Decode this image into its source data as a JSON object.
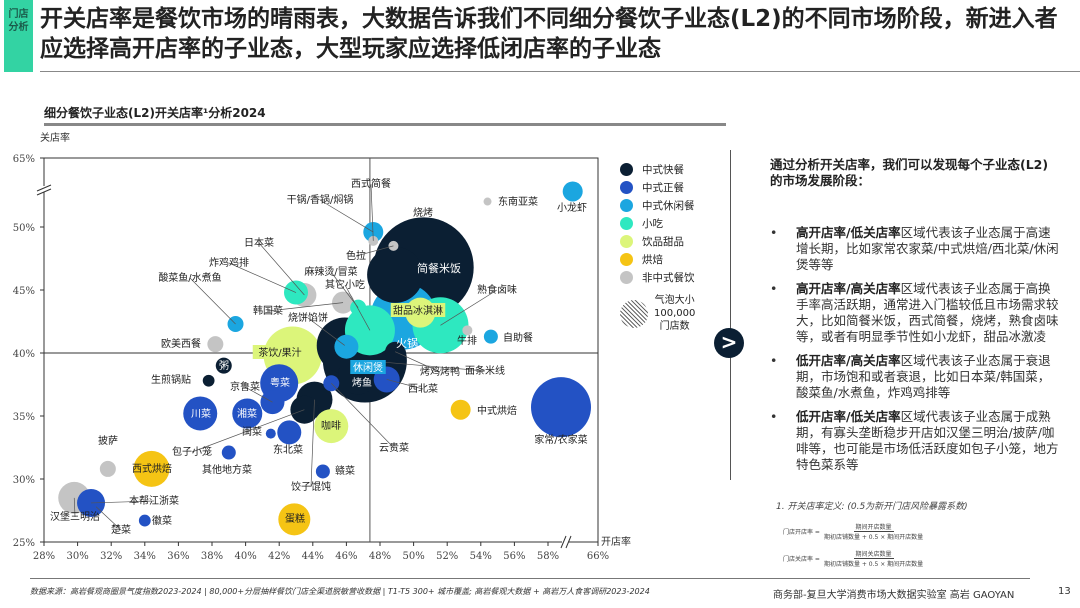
{
  "header": {
    "tag": "门店分析",
    "title": "开关店率是餐饮市场的晴雨表，大数据告诉我们不同细分餐饮子业态(L2)的不同市场阶段，新进入者应选择高开店率的子业态，大型玩家应选择低闭店率的子业态",
    "subtitle": "细分餐饮子业态(L2)开关店率¹分析2024"
  },
  "legend": {
    "items": [
      {
        "label": "中式快餐",
        "color": "#0b1f33"
      },
      {
        "label": "中式正餐",
        "color": "#2352c4"
      },
      {
        "label": "中式休闲餐",
        "color": "#1ba6e0"
      },
      {
        "label": "小吃",
        "color": "#2ee8c0"
      },
      {
        "label": "饮品甜品",
        "color": "#dcf57a"
      },
      {
        "label": "烘焙",
        "color": "#f5c414"
      },
      {
        "label": "非中式餐饮",
        "color": "#c4c4c4"
      }
    ],
    "size_title": "气泡大小",
    "size_value": "100,000",
    "size_unit": "门店数"
  },
  "chart_data": {
    "type": "scatter",
    "subtype": "bubble",
    "xlabel": "开店率",
    "ylabel": "关店率",
    "x_ticks": [
      "28%",
      "30%",
      "32%",
      "34%",
      "36%",
      "38%",
      "40%",
      "42%",
      "44%",
      "46%",
      "48%",
      "50%",
      "52%",
      "54%",
      "56%",
      "58%",
      "66%"
    ],
    "y_ticks": [
      "25%",
      "30%",
      "35%",
      "40%",
      "45%",
      "50%",
      "65%"
    ],
    "xlim": [
      28,
      66
    ],
    "ylim": [
      25,
      65
    ],
    "axis_breaks": {
      "x": [
        58,
        66
      ],
      "y": [
        50,
        65
      ]
    },
    "reference_lines": {
      "x": 47.4,
      "y": 40
    },
    "size_unit": "门店数",
    "points": [
      {
        "name": "小龙虾",
        "category": "中式休闲餐",
        "x": 61.8,
        "y": 52.9,
        "stores": 51000
      },
      {
        "name": "东南亚菜",
        "category": "非中式餐饮",
        "x": 54.4,
        "y": 52.1,
        "stores": 8000
      },
      {
        "name": "干锅/香锅/焖锅",
        "category": "中式休闲餐",
        "x": 47.6,
        "y": 49.6,
        "stores": 51000
      },
      {
        "name": "西式简餐",
        "category": "非中式餐饮",
        "x": 47.6,
        "y": 48.9,
        "stores": 13000
      },
      {
        "name": "色拉",
        "category": "非中式餐饮",
        "x": 48.8,
        "y": 48.5,
        "stores": 13000
      },
      {
        "name": "简餐米饭",
        "category": "中式快餐",
        "x": 50.6,
        "y": 46.8,
        "stores": 1276000
      },
      {
        "name": "烧烤",
        "category": "中式快餐",
        "x": 48.9,
        "y": 46.2,
        "stores": 400000
      },
      {
        "name": "熟食卤味",
        "category": "小吃",
        "x": 51.6,
        "y": 42.2,
        "stores": 400000
      },
      {
        "name": "火锅",
        "category": "中式休闲餐",
        "x": 49.4,
        "y": 42.9,
        "stores": 556000
      },
      {
        "name": "甜品冰淇淋",
        "category": "饮品甜品",
        "x": 50.4,
        "y": 43.2,
        "stores": 115000
      },
      {
        "name": "其它小吃",
        "category": "小吃",
        "x": 47.4,
        "y": 41.8,
        "stores": 319000
      },
      {
        "name": "麻辣烫/冒菜",
        "category": "小吃",
        "x": 46.7,
        "y": 43.6,
        "stores": 33000
      },
      {
        "name": "韩国菜",
        "category": "非中式餐饮",
        "x": 45.8,
        "y": 44.0,
        "stores": 62000
      },
      {
        "name": "日本菜",
        "category": "非中式餐饮",
        "x": 43.5,
        "y": 44.6,
        "stores": 73000
      },
      {
        "name": "炸鸡鸡排",
        "category": "小吃",
        "x": 43.0,
        "y": 44.8,
        "stores": 73000
      },
      {
        "name": "酸菜鱼/水煮鱼",
        "category": "中式休闲餐",
        "x": 39.4,
        "y": 42.3,
        "stores": 33000
      },
      {
        "name": "欧美西餐",
        "category": "非中式餐饮",
        "x": 38.2,
        "y": 40.7,
        "stores": 33000
      },
      {
        "name": "茶饮/果汁",
        "category": "饮品甜品",
        "x": 42.8,
        "y": 39.8,
        "stores": 429000
      },
      {
        "name": "烧饼馅饼",
        "category": "中式快餐",
        "x": 45.9,
        "y": 40.6,
        "stores": 400000
      },
      {
        "name": "休闲煲",
        "category": "中式休闲餐",
        "x": 46.0,
        "y": 40.5,
        "stores": 73000
      },
      {
        "name": "面条米线",
        "category": "中式快餐",
        "x": 47.1,
        "y": 39.4,
        "stores": 900000
      },
      {
        "name": "烤鱼",
        "category": "中式快餐",
        "x": 46.7,
        "y": 38.3,
        "stores": 204000
      },
      {
        "name": "烤鸡烤鸭",
        "category": "中式快餐",
        "x": 48.9,
        "y": 40.1,
        "stores": 51000
      },
      {
        "name": "西北菜",
        "category": "中式正餐",
        "x": 48.4,
        "y": 37.9,
        "stores": 86000
      },
      {
        "name": "云贵菜",
        "category": "中式正餐",
        "x": 45.1,
        "y": 37.6,
        "stores": 33000
      },
      {
        "name": "粥",
        "category": "中式快餐",
        "x": 38.7,
        "y": 39.0,
        "stores": 33000
      },
      {
        "name": "生煎锅贴",
        "category": "中式快餐",
        "x": 37.8,
        "y": 37.8,
        "stores": 18000
      },
      {
        "name": "粤菜",
        "category": "中式正餐",
        "x": 42.0,
        "y": 37.6,
        "stores": 184000
      },
      {
        "name": "京鲁菜",
        "category": "中式正餐",
        "x": 41.6,
        "y": 36.1,
        "stores": 73000
      },
      {
        "name": "川菜",
        "category": "中式正餐",
        "x": 37.3,
        "y": 35.2,
        "stores": 147000
      },
      {
        "name": "湘菜",
        "category": "中式正餐",
        "x": 40.1,
        "y": 35.2,
        "stores": 115000
      },
      {
        "name": "饺子馄饨",
        "category": "中式快餐",
        "x": 44.1,
        "y": 36.3,
        "stores": 165000
      },
      {
        "name": "包子小笼",
        "category": "中式快餐",
        "x": 43.5,
        "y": 35.5,
        "stores": 100000
      },
      {
        "name": "咖啡",
        "category": "饮品甜品",
        "x": 45.1,
        "y": 34.2,
        "stores": 147000
      },
      {
        "name": "闽菜",
        "category": "中式正餐",
        "x": 41.5,
        "y": 33.6,
        "stores": 13000
      },
      {
        "name": "东北菜",
        "category": "中式正餐",
        "x": 42.6,
        "y": 33.7,
        "stores": 73000
      },
      {
        "name": "其他地方菜",
        "category": "中式正餐",
        "x": 39.0,
        "y": 32.1,
        "stores": 25000
      },
      {
        "name": "披萨",
        "category": "非中式餐饮",
        "x": 31.8,
        "y": 30.8,
        "stores": 33000
      },
      {
        "name": "西式烘焙",
        "category": "烘焙",
        "x": 34.4,
        "y": 30.8,
        "stores": 165000
      },
      {
        "name": "赣菜",
        "category": "中式正餐",
        "x": 44.6,
        "y": 30.6,
        "stores": 25000
      },
      {
        "name": "汉堡三明治",
        "category": "非中式餐饮",
        "x": 29.8,
        "y": 28.5,
        "stores": 131000
      },
      {
        "name": "本帮江浙菜",
        "category": "中式正餐",
        "x": 30.8,
        "y": 28.1,
        "stores": 100000
      },
      {
        "name": "楚菜",
        "category": "中式正餐",
        "x": 31.1,
        "y": 27.8,
        "stores": 18000
      },
      {
        "name": "徽菜",
        "category": "中式正餐",
        "x": 34.0,
        "y": 26.7,
        "stores": 18000
      },
      {
        "name": "蛋糕",
        "category": "烘焙",
        "x": 42.9,
        "y": 26.8,
        "stores": 131000
      },
      {
        "name": "中式烘焙",
        "category": "烘焙",
        "x": 52.8,
        "y": 35.5,
        "stores": 51000
      },
      {
        "name": "家常/农家菜",
        "category": "中式正餐",
        "x": 60.0,
        "y": 35.7,
        "stores": 459000
      },
      {
        "name": "牛排",
        "category": "非中式餐饮",
        "x": 53.2,
        "y": 41.8,
        "stores": 13000
      },
      {
        "name": "自助餐",
        "category": "中式休闲餐",
        "x": 54.6,
        "y": 41.3,
        "stores": 25000
      }
    ]
  },
  "panel": {
    "heading": "通过分析开关店率，我们可以发现每个子业态(L2)的市场发展阶段：",
    "bullets": [
      {
        "bold": "高开店率/低关店率",
        "text": "区域代表该子业态属于高速增长期，比如家常农家菜/中式烘焙/西北菜/休闲煲等等"
      },
      {
        "bold": "高开店率/高关店率",
        "text": "区域代表该子业态属于高换手率高活跃期，通常进入门槛较低且市场需求较大，比如简餐米饭，西式简餐，烧烤，熟食卤味等，或者有明显季节性如小龙虾，甜品冰激凌"
      },
      {
        "bold": "低开店率/高关店率",
        "text": "区域代表该子业态属于衰退期，市场饱和或者衰退，比如日本菜/韩国菜，酸菜鱼/水煮鱼，炸鸡鸡排等"
      },
      {
        "bold": "低开店率/低关店率",
        "text": "区域代表该子业态属于成熟期，有寡头垄断稳步开店如汉堡三明治/披萨/咖啡等，也可能是市场低活跃度如包子小笼，地方特色菜系等"
      }
    ],
    "note": "1. 开关店率定义: (0.5为新开门店风险暴露系数)",
    "formula_open": {
      "label": "门店开店率 =",
      "numerator": "期间开店数量",
      "denominator": "期初店铺数量 + 0.5 × 期间开店数量"
    },
    "formula_close": {
      "label": "门店关店率 =",
      "numerator": "期间关店数量",
      "denominator": "期初店铺数量 + 0.5 × 期间开店数量"
    }
  },
  "footer": {
    "source": "数据来源：高岩餐观商圈景气度指数2023-2024 | 80,000+分层抽样餐饮门店全渠道脱敏营收数据 | T1-T5 300+ 城市覆盖; 高岩餐观大数据 + 高岩万人食客调研2023-2024",
    "org": "商务部-复旦大学消费市场大数据实验室   高岩 GAOYAN",
    "page": "13"
  }
}
